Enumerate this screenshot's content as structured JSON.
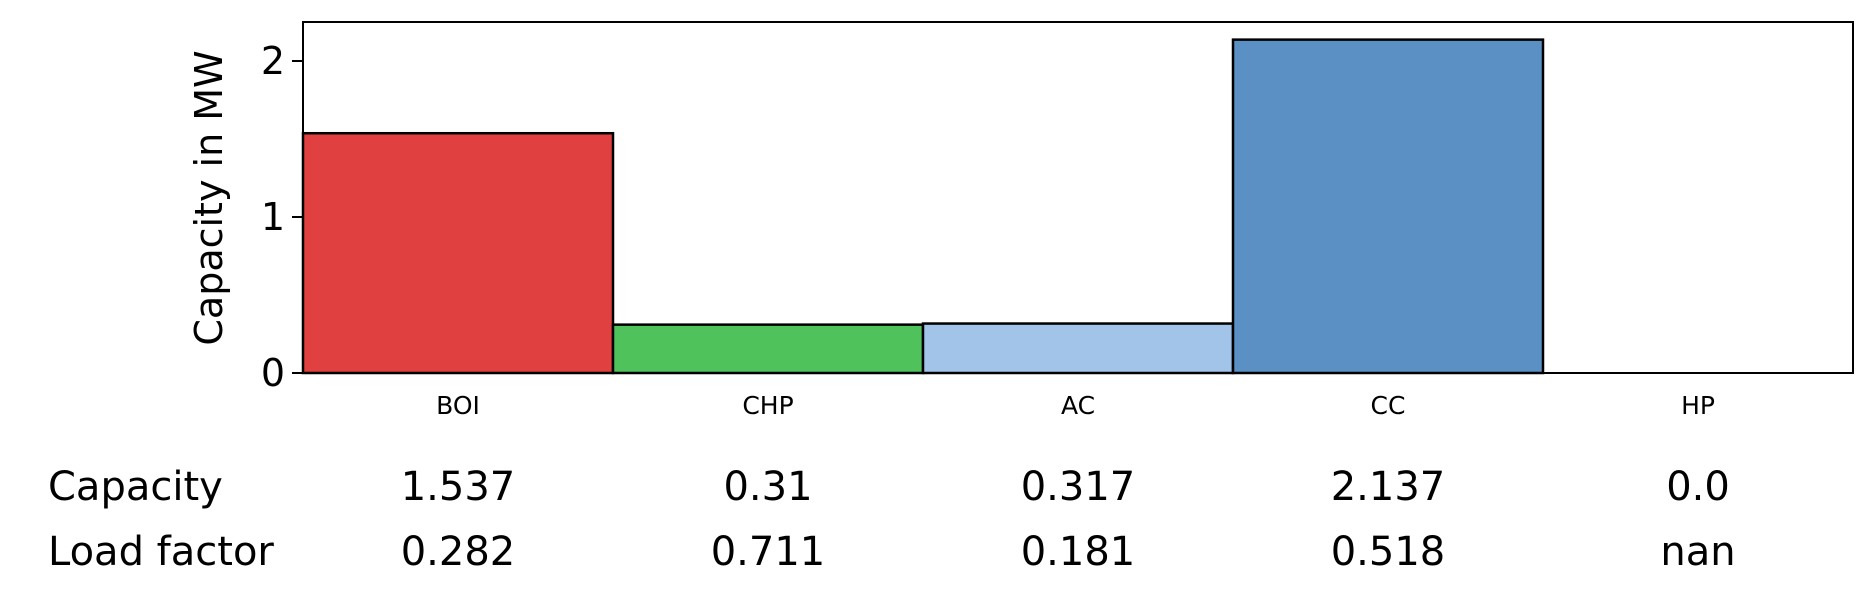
{
  "chart_data": {
    "type": "bar",
    "categories": [
      "BOI",
      "CHP",
      "AC",
      "CC",
      "HP"
    ],
    "values": [
      1.537,
      0.31,
      0.317,
      2.137,
      0.0
    ],
    "ylabel": "Capacity in MW",
    "ylim": [
      0,
      2.25
    ],
    "yticks": [
      0,
      1,
      2
    ],
    "grid": false,
    "colors": [
      "#e04040",
      "#50c25c",
      "#a2c4e8",
      "#5b90c4",
      "#ffffff"
    ],
    "table": {
      "rows": [
        {
          "label": "Capacity",
          "values": [
            "1.537",
            "0.31",
            "0.317",
            "2.137",
            "0.0"
          ]
        },
        {
          "label": "Load factor",
          "values": [
            "0.282",
            "0.711",
            "0.181",
            "0.518",
            "nan"
          ]
        }
      ]
    }
  }
}
